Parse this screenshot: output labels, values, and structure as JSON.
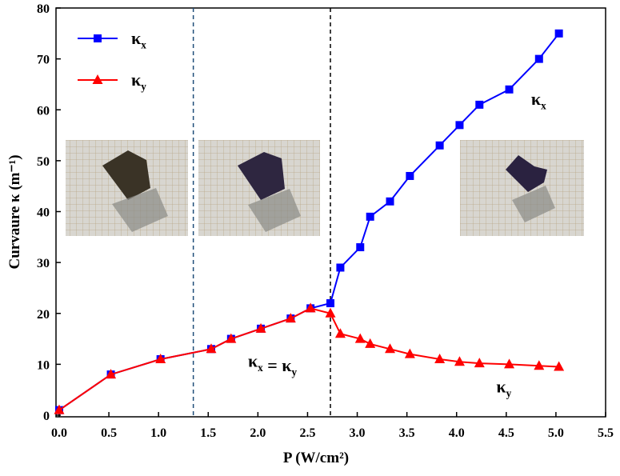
{
  "chart_data": {
    "type": "line",
    "x_label": "P (W/cm²)",
    "y_label": "Curvaure κ (m⁻¹)",
    "x": [
      0,
      0.52,
      1.02,
      1.53,
      1.73,
      2.03,
      2.33,
      2.53,
      2.73,
      2.83,
      3.03,
      3.13,
      3.33,
      3.53,
      3.83,
      4.03,
      4.23,
      4.53,
      4.83,
      5.03
    ],
    "series": [
      {
        "name": "κx",
        "color": "#0000ff",
        "marker": "square",
        "values": [
          1,
          8,
          11,
          13,
          15,
          17,
          19,
          21,
          22,
          29,
          33,
          39,
          42,
          47,
          53,
          57,
          61,
          64,
          70,
          75
        ]
      },
      {
        "name": "κy",
        "color": "#ff0000",
        "marker": "triangle",
        "values": [
          1,
          8,
          11,
          13,
          15,
          17,
          19,
          21,
          20,
          16,
          15,
          14,
          13,
          12,
          11,
          10.5,
          10.2,
          10,
          9.7,
          9.5
        ]
      }
    ],
    "xlim": [
      0,
      5.5
    ],
    "ylim": [
      0,
      80
    ],
    "xticks": [
      {
        "value": 0,
        "label": "0.0"
      },
      0.5,
      {
        "value": 1,
        "label": "1.0"
      },
      1.5,
      {
        "value": 2,
        "label": "2.0"
      },
      2.5,
      {
        "value": 3,
        "label": "3.0"
      },
      3.5,
      {
        "value": 4,
        "label": "4.0"
      },
      4.5,
      {
        "value": 5,
        "label": "5.0"
      },
      5.5
    ],
    "yticks": [
      0,
      10,
      20,
      30,
      40,
      50,
      60,
      70,
      80
    ],
    "reference_lines": [
      {
        "x": 1.35,
        "color": "#1f4e79"
      },
      {
        "x": 2.73,
        "color": "#000000"
      }
    ],
    "legend": "upper left",
    "annotations": [
      {
        "text": "κx",
        "x": 4.75,
        "y": 61
      },
      {
        "text": "κx = κy",
        "x": 1.9,
        "y": 9.5
      },
      {
        "text": "κy",
        "x": 4.4,
        "y": 4.5
      }
    ]
  }
}
